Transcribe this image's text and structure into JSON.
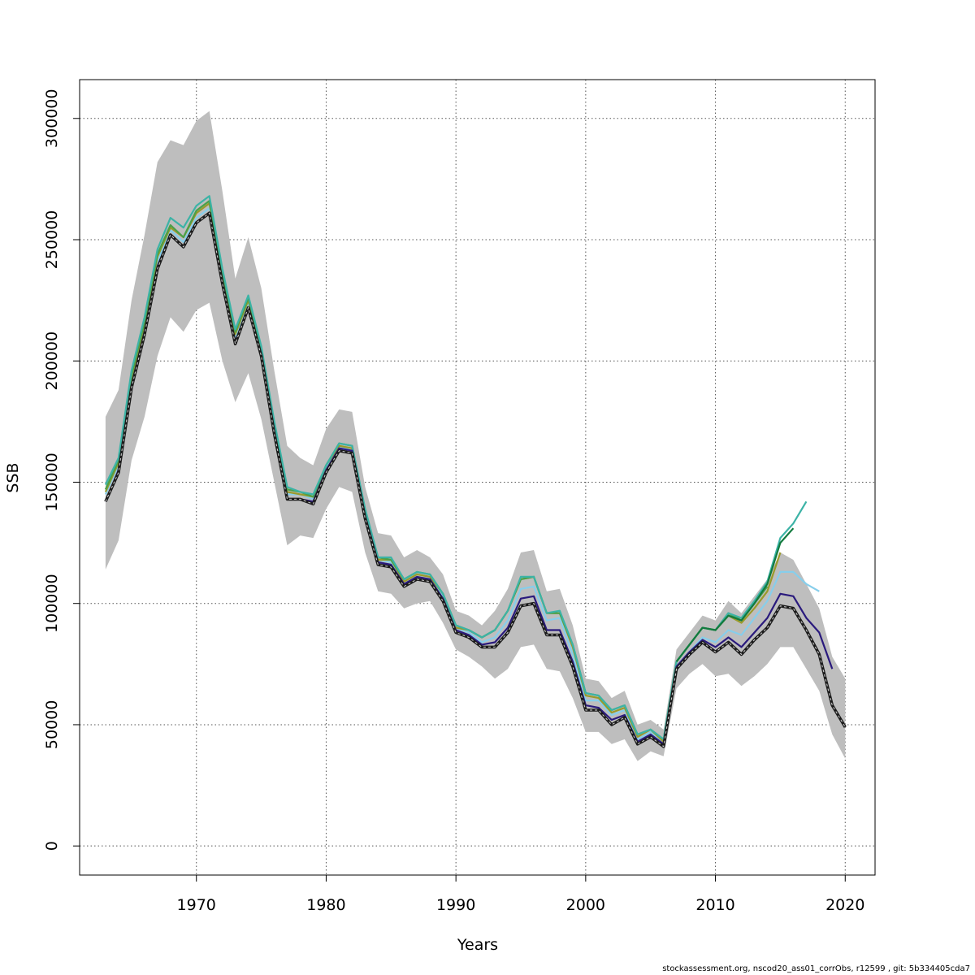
{
  "chart_data": {
    "type": "line",
    "title": "",
    "xlabel": "Years",
    "ylabel": "SSB",
    "xlim": [
      1961,
      2022.3
    ],
    "ylim": [
      -12000,
      316000
    ],
    "xticks": [
      1970,
      1980,
      1990,
      2000,
      2010,
      2020
    ],
    "yticks": [
      0,
      50000,
      100000,
      150000,
      200000,
      250000,
      300000
    ],
    "grid": true,
    "legend": "none",
    "colors": {
      "band": "#bebebe",
      "grid": "#555555",
      "frame": "#000000"
    },
    "confidence_band": {
      "x": [
        1963,
        1964,
        1965,
        1966,
        1967,
        1968,
        1969,
        1970,
        1971,
        1972,
        1973,
        1974,
        1975,
        1976,
        1977,
        1978,
        1979,
        1980,
        1981,
        1982,
        1983,
        1984,
        1985,
        1986,
        1987,
        1988,
        1989,
        1990,
        1991,
        1992,
        1993,
        1994,
        1995,
        1996,
        1997,
        1998,
        1999,
        2000,
        2001,
        2002,
        2003,
        2004,
        2005,
        2006,
        2007,
        2008,
        2009,
        2010,
        2011,
        2012,
        2013,
        2014,
        2015,
        2016,
        2017,
        2018,
        2019,
        2020
      ],
      "lower": [
        114000,
        126000,
        159000,
        177000,
        202000,
        218000,
        212000,
        221000,
        224000,
        200000,
        183000,
        195000,
        176000,
        150000,
        124000,
        128000,
        127000,
        139000,
        148000,
        146000,
        121000,
        105000,
        104000,
        98000,
        100000,
        101000,
        92000,
        81000,
        78000,
        74000,
        69000,
        73000,
        82000,
        83000,
        73000,
        72000,
        61000,
        47000,
        47000,
        42000,
        44000,
        35000,
        39000,
        37000,
        65000,
        71000,
        75000,
        70000,
        71000,
        66000,
        70000,
        75000,
        82000,
        82000,
        73000,
        64000,
        46000,
        36000
      ],
      "upper": [
        177000,
        188000,
        225000,
        252000,
        282000,
        291000,
        289000,
        299000,
        303000,
        270000,
        234000,
        251000,
        230000,
        196000,
        165000,
        160000,
        157000,
        172000,
        180000,
        179000,
        148000,
        129000,
        128000,
        119000,
        122000,
        119000,
        112000,
        97000,
        95000,
        91000,
        97000,
        106000,
        121000,
        122000,
        105000,
        106000,
        91000,
        69000,
        68000,
        61000,
        64000,
        50000,
        52000,
        48000,
        81000,
        88000,
        95000,
        93000,
        101000,
        96000,
        103000,
        110000,
        121000,
        118000,
        108000,
        98000,
        78000,
        69000
      ]
    },
    "series": [
      {
        "color": "#1b1b1b",
        "dash": "dashed",
        "x": [
          1963,
          1964,
          1965,
          1966,
          1967,
          1968,
          1969,
          1970,
          1971,
          1972,
          1973,
          1974,
          1975,
          1976,
          1977,
          1978,
          1979,
          1980,
          1981,
          1982,
          1983,
          1984,
          1985,
          1986,
          1987,
          1988,
          1989,
          1990,
          1991,
          1992,
          1993,
          1994,
          1995,
          1996,
          1997,
          1998,
          1999,
          2000,
          2001,
          2002,
          2003,
          2004,
          2005,
          2006,
          2007,
          2008,
          2009,
          2010,
          2011,
          2012,
          2013,
          2014,
          2015,
          2016,
          2017,
          2018,
          2019,
          2020
        ],
        "values": [
          142000,
          154000,
          189000,
          211000,
          238000,
          252000,
          247000,
          257000,
          261000,
          232000,
          207000,
          222000,
          202000,
          170000,
          143000,
          143000,
          141000,
          154000,
          163000,
          162000,
          135000,
          116000,
          115000,
          107000,
          110000,
          109000,
          101000,
          88000,
          86000,
          82000,
          82000,
          88000,
          99000,
          100000,
          87000,
          87000,
          74000,
          56000,
          56000,
          50000,
          53000,
          42000,
          45000,
          41000,
          73000,
          79000,
          84000,
          80000,
          84000,
          79000,
          85000,
          90000,
          99000,
          98000,
          89000,
          79000,
          58000,
          49000
        ]
      },
      {
        "color": "#2a1a7d",
        "dash": "solid",
        "x": [
          1963,
          1964,
          1965,
          1966,
          1967,
          1968,
          1969,
          1970,
          1971,
          1972,
          1973,
          1974,
          1975,
          1976,
          1977,
          1978,
          1979,
          1980,
          1981,
          1982,
          1983,
          1984,
          1985,
          1986,
          1987,
          1988,
          1989,
          1990,
          1991,
          1992,
          1993,
          1994,
          1995,
          1996,
          1997,
          1998,
          1999,
          2000,
          2001,
          2002,
          2003,
          2004,
          2005,
          2006,
          2007,
          2008,
          2009,
          2010,
          2011,
          2012,
          2013,
          2014,
          2015,
          2016,
          2017,
          2018,
          2019
        ],
        "values": [
          142000,
          155000,
          190000,
          212000,
          239000,
          252000,
          247000,
          257000,
          261000,
          232000,
          208000,
          222000,
          202000,
          171000,
          143000,
          143000,
          142000,
          155000,
          164000,
          163000,
          136000,
          117000,
          116000,
          108000,
          111000,
          110000,
          102000,
          89000,
          87000,
          83000,
          84000,
          90000,
          102000,
          103000,
          89000,
          89000,
          76000,
          58000,
          57000,
          52000,
          54000,
          43000,
          46000,
          42000,
          74000,
          80000,
          85000,
          82000,
          86000,
          82000,
          88000,
          94000,
          104000,
          103000,
          94000,
          88000,
          73000
        ]
      },
      {
        "color": "#87ceeb",
        "dash": "solid",
        "x": [
          1963,
          1964,
          1965,
          1966,
          1967,
          1968,
          1969,
          1970,
          1971,
          1972,
          1973,
          1974,
          1975,
          1976,
          1977,
          1978,
          1979,
          1980,
          1981,
          1982,
          1983,
          1984,
          1985,
          1986,
          1987,
          1988,
          1989,
          1990,
          1991,
          1992,
          1993,
          1994,
          1995,
          1996,
          1997,
          1998,
          1999,
          2000,
          2001,
          2002,
          2003,
          2004,
          2005,
          2006,
          2007,
          2008,
          2009,
          2010,
          2011,
          2012,
          2013,
          2014,
          2015,
          2016,
          2017,
          2018
        ],
        "values": [
          145000,
          157000,
          192000,
          214000,
          241000,
          254000,
          249000,
          259000,
          263000,
          234000,
          210000,
          224000,
          204000,
          173000,
          145000,
          145000,
          143000,
          156000,
          164000,
          164000,
          137000,
          118000,
          117000,
          109000,
          112000,
          111000,
          103000,
          90000,
          88000,
          84000,
          86000,
          93000,
          106000,
          107000,
          93000,
          94000,
          79000,
          60000,
          60000,
          54000,
          56000,
          44000,
          47000,
          43000,
          74000,
          80000,
          86000,
          84000,
          89000,
          87000,
          94000,
          101000,
          113000,
          113000,
          108000,
          105000
        ]
      },
      {
        "color": "#9a9a2a",
        "dash": "solid",
        "x": [
          1963,
          1964,
          1965,
          1966,
          1967,
          1968,
          1969,
          1970,
          1971,
          1972,
          1973,
          1974,
          1975,
          1976,
          1977,
          1978,
          1979,
          1980,
          1981,
          1982,
          1983,
          1984,
          1985,
          1986,
          1987,
          1988,
          1989,
          1990,
          1991,
          1992,
          1993,
          1994,
          1995,
          1996,
          1997,
          1998,
          1999,
          2000,
          2001,
          2002,
          2003,
          2004,
          2005,
          2006,
          2007,
          2008,
          2009,
          2010,
          2011,
          2012,
          2013,
          2014,
          2015
        ],
        "values": [
          146000,
          158000,
          193000,
          215000,
          243000,
          255000,
          251000,
          261000,
          265000,
          236000,
          211000,
          225000,
          205000,
          174000,
          146000,
          145000,
          144000,
          157000,
          165000,
          164000,
          138000,
          118000,
          118000,
          109000,
          112000,
          111000,
          104000,
          90000,
          89000,
          86000,
          89000,
          97000,
          110000,
          111000,
          96000,
          96000,
          82000,
          62000,
          61000,
          55000,
          57000,
          45000,
          48000,
          43000,
          76000,
          83000,
          90000,
          89000,
          95000,
          92000,
          98000,
          105000,
          121000
        ]
      },
      {
        "color": "#4aa049",
        "dash": "solid",
        "x": [
          1963,
          1964,
          1965,
          1966,
          1967,
          1968,
          1969,
          1970,
          1971,
          1972,
          1973,
          1974,
          1975,
          1976,
          1977,
          1978,
          1979,
          1980,
          1981,
          1982,
          1983,
          1984,
          1985,
          1986,
          1987,
          1988,
          1989,
          1990,
          1991,
          1992,
          1993,
          1994,
          1995,
          1996,
          1997,
          1998,
          1999,
          2000,
          2001,
          2002,
          2003,
          2004,
          2005,
          2006,
          2007,
          2008,
          2009,
          2010,
          2011,
          2012,
          2013,
          2014
        ],
        "values": [
          147000,
          159000,
          194000,
          216000,
          244000,
          256000,
          251000,
          262000,
          266000,
          236000,
          212000,
          226000,
          205000,
          174000,
          147000,
          146000,
          144000,
          157000,
          166000,
          165000,
          138000,
          119000,
          118000,
          110000,
          113000,
          112000,
          104000,
          91000,
          89000,
          86000,
          89000,
          97000,
          110000,
          111000,
          96000,
          96000,
          83000,
          63000,
          62000,
          56000,
          58000,
          46000,
          48000,
          44000,
          76000,
          83000,
          90000,
          89000,
          96000,
          93000,
          100000,
          107000
        ]
      },
      {
        "color": "#127a3e",
        "dash": "solid",
        "x": [
          2007,
          2008,
          2009,
          2010,
          2011,
          2012,
          2013,
          2014,
          2015,
          2016
        ],
        "values": [
          76000,
          83000,
          90000,
          89000,
          95000,
          93000,
          100000,
          108000,
          125000,
          131000
        ]
      },
      {
        "color": "#3cb3a6",
        "dash": "solid",
        "x": [
          1963,
          1964,
          1965,
          1966,
          1967,
          1968,
          1969,
          1970,
          1971,
          1972,
          1973,
          1974,
          1975,
          1976,
          1977,
          1978,
          1979,
          1980,
          1981,
          1982,
          1983,
          1984,
          1985,
          1986,
          1987,
          1988,
          1989,
          1990,
          1991,
          1992,
          1993,
          1994,
          1995,
          1996,
          1997,
          1998,
          1999,
          2000,
          2001,
          2002,
          2003,
          2004,
          2005,
          2006,
          2007,
          2008,
          2009,
          2010,
          2011,
          2012,
          2013,
          2014,
          2015,
          2016,
          2017
        ],
        "values": [
          149000,
          160000,
          196000,
          218000,
          246000,
          259000,
          255000,
          264000,
          268000,
          238000,
          213000,
          227000,
          206000,
          175000,
          148000,
          146000,
          145000,
          157000,
          166000,
          165000,
          139000,
          119000,
          119000,
          110000,
          113000,
          112000,
          104000,
          91000,
          89000,
          86000,
          89000,
          97000,
          111000,
          111000,
          96000,
          97000,
          83000,
          63000,
          62000,
          56000,
          58000,
          46000,
          48000,
          44000,
          76000,
          83000,
          90000,
          89000,
          96000,
          94000,
          101000,
          109000,
          127000,
          133000,
          142000
        ]
      }
    ]
  },
  "footer": {
    "text": "stockassessment.org, nscod20_ass01_corrObs, r12599 , git: 5b334405cda7"
  }
}
